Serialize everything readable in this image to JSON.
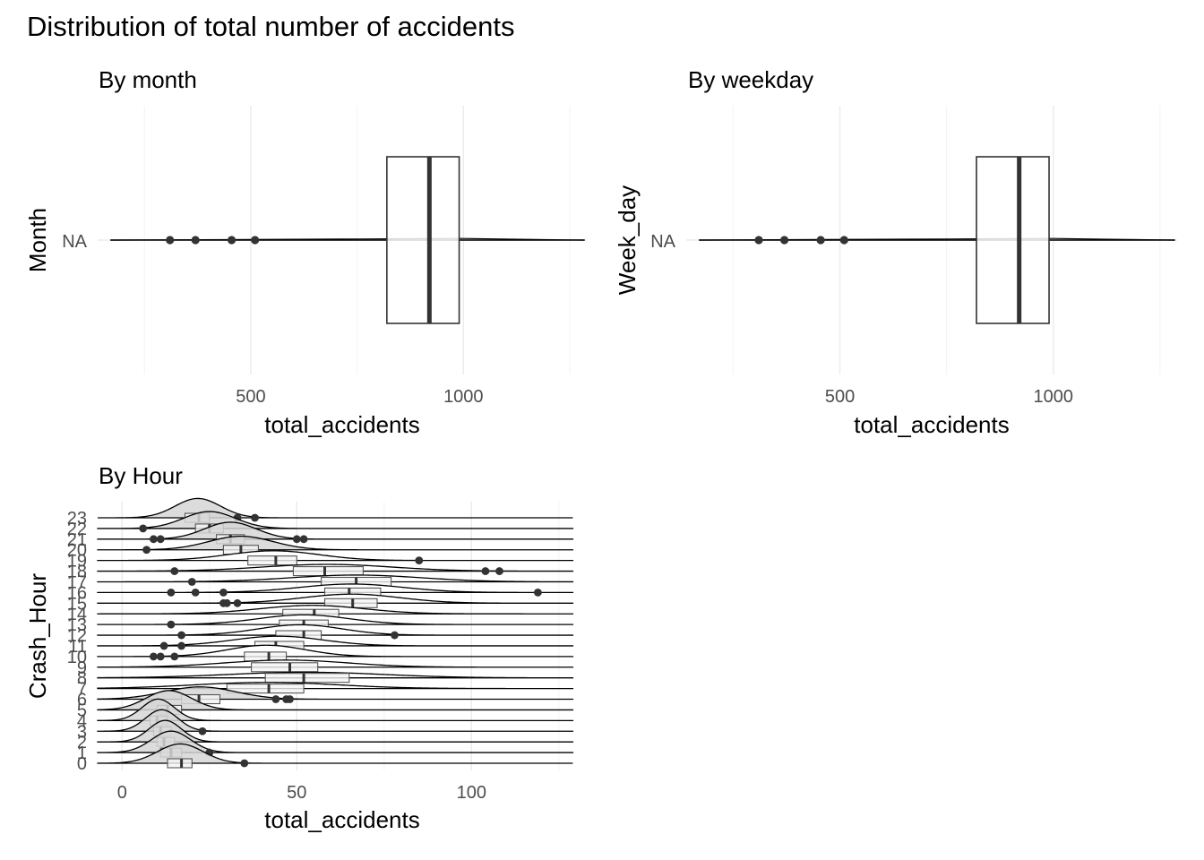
{
  "title": "Distribution of total number of accidents",
  "chart_data": [
    {
      "type": "box-density",
      "subtitle": "By month",
      "xlabel": "total_accidents",
      "ylabel": "Month",
      "category": "NA",
      "xlim": [
        140,
        1290
      ],
      "x_ticks": [
        500,
        1000
      ],
      "grid_minor": [
        250,
        750,
        1250
      ],
      "box": {
        "q1": 820,
        "median": 920,
        "q3": 990
      },
      "whisker_line": [
        170,
        1285
      ],
      "points": [
        310,
        370,
        455,
        510
      ],
      "grid": true
    },
    {
      "type": "box-density",
      "subtitle": "By weekday",
      "xlabel": "total_accidents",
      "ylabel": "Week_day",
      "category": "NA",
      "xlim": [
        140,
        1290
      ],
      "x_ticks": [
        500,
        1000
      ],
      "grid_minor": [
        250,
        750,
        1250
      ],
      "box": {
        "q1": 820,
        "median": 920,
        "q3": 990
      },
      "whisker_line": [
        170,
        1285
      ],
      "points": [
        310,
        370,
        455,
        510
      ],
      "grid": true
    },
    {
      "type": "ridgeline-box",
      "subtitle": "By Hour",
      "xlabel": "total_accidents",
      "ylabel": "Crash_Hour",
      "xlim": [
        -7,
        133
      ],
      "x_ticks": [
        0,
        50,
        100
      ],
      "grid_minor": [
        25,
        75,
        125
      ],
      "line_range": [
        -7,
        129
      ],
      "categories": [
        "0",
        "1",
        "2",
        "3",
        "4",
        "5",
        "6",
        "7",
        "8",
        "9",
        "10",
        "11",
        "12",
        "13",
        "14",
        "15",
        "16",
        "17",
        "18",
        "19",
        "20",
        "21",
        "22",
        "23"
      ],
      "series": [
        {
          "hour": "0",
          "q1": 13,
          "median": 17,
          "q3": 20,
          "outliers": [
            35
          ]
        },
        {
          "hour": "1",
          "q1": 11,
          "median": 14,
          "q3": 17,
          "outliers": [
            25
          ]
        },
        {
          "hour": "2",
          "q1": 10,
          "median": 12,
          "q3": 15,
          "outliers": []
        },
        {
          "hour": "3",
          "q1": 9,
          "median": 11,
          "q3": 14,
          "outliers": [
            23
          ]
        },
        {
          "hour": "4",
          "q1": 8,
          "median": 10,
          "q3": 13,
          "outliers": []
        },
        {
          "hour": "5",
          "q1": 10,
          "median": 13,
          "q3": 17,
          "outliers": []
        },
        {
          "hour": "6",
          "q1": 17,
          "median": 22,
          "q3": 28,
          "outliers": [
            44,
            47,
            48
          ]
        },
        {
          "hour": "7",
          "q1": 30,
          "median": 42,
          "q3": 52,
          "outliers": []
        },
        {
          "hour": "8",
          "q1": 41,
          "median": 52,
          "q3": 65,
          "outliers": []
        },
        {
          "hour": "9",
          "q1": 37,
          "median": 48,
          "q3": 56,
          "outliers": []
        },
        {
          "hour": "10",
          "q1": 35,
          "median": 42,
          "q3": 47,
          "outliers": [
            9,
            11,
            15
          ]
        },
        {
          "hour": "11",
          "q1": 38,
          "median": 44,
          "q3": 52,
          "outliers": [
            12,
            17
          ]
        },
        {
          "hour": "12",
          "q1": 44,
          "median": 52,
          "q3": 57,
          "outliers": [
            17,
            78
          ]
        },
        {
          "hour": "13",
          "q1": 45,
          "median": 52,
          "q3": 59,
          "outliers": [
            14
          ]
        },
        {
          "hour": "14",
          "q1": 46,
          "median": 55,
          "q3": 62,
          "outliers": []
        },
        {
          "hour": "15",
          "q1": 58,
          "median": 66,
          "q3": 73,
          "outliers": [
            29,
            30,
            33
          ]
        },
        {
          "hour": "16",
          "q1": 58,
          "median": 65,
          "q3": 74,
          "outliers": [
            14,
            21,
            29,
            119
          ]
        },
        {
          "hour": "17",
          "q1": 57,
          "median": 67,
          "q3": 77,
          "outliers": [
            20
          ]
        },
        {
          "hour": "18",
          "q1": 49,
          "median": 58,
          "q3": 69,
          "outliers": [
            15,
            104,
            108
          ]
        },
        {
          "hour": "19",
          "q1": 36,
          "median": 44,
          "q3": 50,
          "outliers": [
            85
          ]
        },
        {
          "hour": "20",
          "q1": 29,
          "median": 34,
          "q3": 39,
          "outliers": [
            7
          ]
        },
        {
          "hour": "21",
          "q1": 27,
          "median": 31,
          "q3": 35,
          "outliers": [
            9,
            11,
            50,
            52
          ]
        },
        {
          "hour": "22",
          "q1": 21,
          "median": 25,
          "q3": 29,
          "outliers": [
            6
          ]
        },
        {
          "hour": "23",
          "q1": 18,
          "median": 22,
          "q3": 25,
          "outliers": [
            33,
            38
          ]
        }
      ],
      "grid": true
    }
  ]
}
